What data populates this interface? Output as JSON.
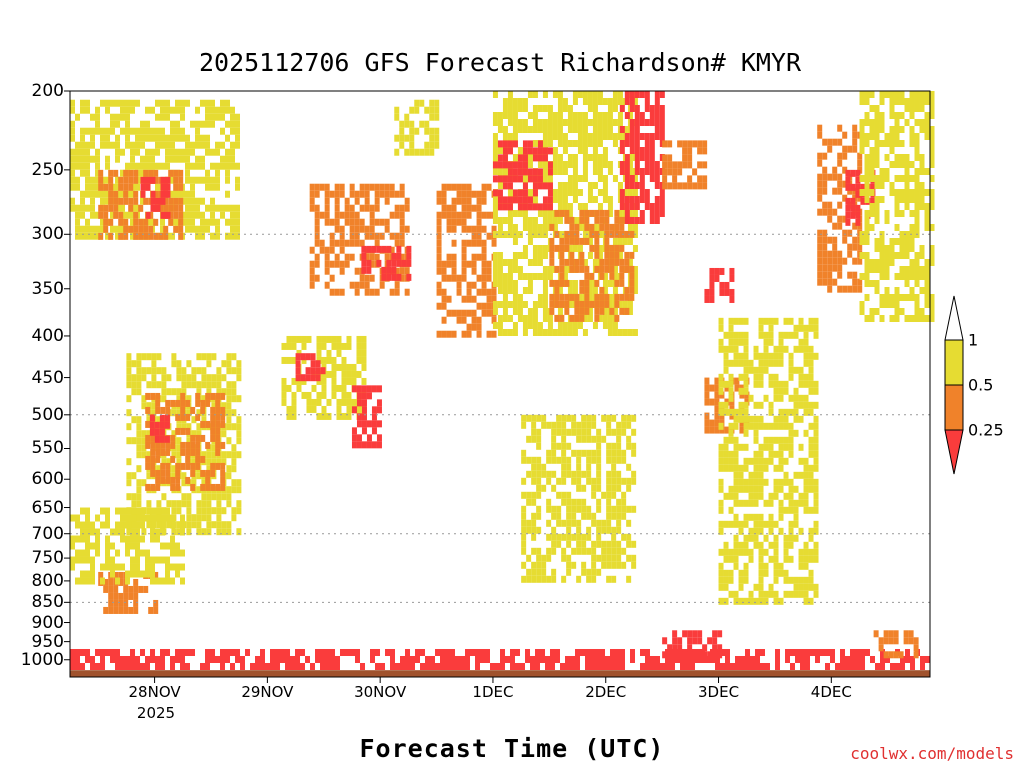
{
  "chart_data": {
    "type": "heatmap",
    "title": "2025112706 GFS Forecast Richardson# KMYR",
    "xlabel": "Forecast Time (UTC)",
    "ylabel": "",
    "credit": "coolwx.com/models",
    "y_axis": {
      "unit": "hPa",
      "scale": "log-pressure",
      "range": [
        1050,
        200
      ],
      "ticks": [
        "200",
        "250",
        "300",
        "350",
        "400",
        "450",
        "500",
        "550",
        "600",
        "650",
        "700",
        "750",
        "800",
        "850",
        "900",
        "950",
        "1000"
      ],
      "gridlines": [
        300,
        500,
        700,
        850
      ],
      "grid_style": "dotted"
    },
    "x_axis": {
      "range": [
        "2025-11-27T06:00Z",
        "2025-12-04T21:00Z"
      ],
      "ticks": [
        {
          "date": "2025-11-28T00:00Z",
          "label": "28NOV"
        },
        {
          "date": "2025-11-29T00:00Z",
          "label": "29NOV"
        },
        {
          "date": "2025-11-30T00:00Z",
          "label": "30NOV"
        },
        {
          "date": "2025-12-01T00:00Z",
          "label": "1DEC"
        },
        {
          "date": "2025-12-02T00:00Z",
          "label": "2DEC"
        },
        {
          "date": "2025-12-03T00:00Z",
          "label": "3DEC"
        },
        {
          "date": "2025-12-04T00:00Z",
          "label": "4DEC"
        }
      ],
      "year_label": "2025"
    },
    "colorbar": {
      "labels": [
        "1",
        "0.5",
        "0.25"
      ],
      "bins": [
        {
          "range": "1 and above",
          "color": "#ffffff"
        },
        {
          "range": "0.5 to 1",
          "color": "#e6dc32"
        },
        {
          "range": "0.25 to 0.5",
          "color": "#f0822a"
        },
        {
          "range": "below 0.25",
          "color": "#fa3c3c"
        }
      ]
    },
    "ground_color": "#a0522d",
    "regions": [
      {
        "bin": "low",
        "t": [
          "2025-11-27T06:00Z",
          "2025-12-04T21:00Z"
        ],
        "p": [
          970,
          1010
        ],
        "note": "near-surface layer"
      },
      {
        "bin": "mid",
        "t": [
          "2025-11-27T12:00Z",
          "2025-11-28T00:00Z"
        ],
        "p": [
          780,
          870
        ]
      },
      {
        "bin": "high",
        "t": [
          "2025-11-27T06:00Z",
          "2025-11-28T06:00Z"
        ],
        "p": [
          650,
          800
        ]
      },
      {
        "bin": "high",
        "t": [
          "2025-11-27T18:00Z",
          "2025-11-28T18:00Z"
        ],
        "p": [
          420,
          700
        ]
      },
      {
        "bin": "mid",
        "t": [
          "2025-11-27T22:00Z",
          "2025-11-28T14:00Z"
        ],
        "p": [
          470,
          620
        ]
      },
      {
        "bin": "low",
        "t": [
          "2025-11-27T23:00Z",
          "2025-11-28T03:00Z"
        ],
        "p": [
          500,
          540
        ]
      },
      {
        "bin": "high",
        "t": [
          "2025-11-27T06:00Z",
          "2025-11-28T18:00Z"
        ],
        "p": [
          205,
          300
        ]
      },
      {
        "bin": "mid",
        "t": [
          "2025-11-27T12:00Z",
          "2025-11-28T06:00Z"
        ],
        "p": [
          250,
          300
        ]
      },
      {
        "bin": "low",
        "t": [
          "2025-11-27T21:00Z",
          "2025-11-28T03:00Z"
        ],
        "p": [
          255,
          285
        ]
      },
      {
        "bin": "high",
        "t": [
          "2025-11-29T03:00Z",
          "2025-11-29T21:00Z"
        ],
        "p": [
          400,
          500
        ]
      },
      {
        "bin": "low",
        "t": [
          "2025-11-29T06:00Z",
          "2025-11-29T12:00Z"
        ],
        "p": [
          420,
          450
        ]
      },
      {
        "bin": "low",
        "t": [
          "2025-11-29T18:00Z",
          "2025-11-30T00:00Z"
        ],
        "p": [
          460,
          540
        ]
      },
      {
        "bin": "mid",
        "t": [
          "2025-11-29T09:00Z",
          "2025-11-30T06:00Z"
        ],
        "p": [
          260,
          350
        ]
      },
      {
        "bin": "low",
        "t": [
          "2025-11-29T20:00Z",
          "2025-11-30T06:00Z"
        ],
        "p": [
          310,
          340
        ]
      },
      {
        "bin": "high",
        "t": [
          "2025-11-30T03:00Z",
          "2025-11-30T12:00Z"
        ],
        "p": [
          205,
          240
        ]
      },
      {
        "bin": "mid",
        "t": [
          "2025-11-30T12:00Z",
          "2025-12-01T00:00Z"
        ],
        "p": [
          260,
          400
        ]
      },
      {
        "bin": "high",
        "t": [
          "2025-12-01T00:00Z",
          "2025-12-02T06:00Z"
        ],
        "p": [
          200,
          400
        ]
      },
      {
        "bin": "low",
        "t": [
          "2025-12-01T00:00Z",
          "2025-12-01T12:00Z"
        ],
        "p": [
          230,
          280
        ]
      },
      {
        "bin": "mid",
        "t": [
          "2025-12-01T12:00Z",
          "2025-12-02T06:00Z"
        ],
        "p": [
          280,
          380
        ]
      },
      {
        "bin": "low",
        "t": [
          "2025-12-02T03:00Z",
          "2025-12-02T12:00Z"
        ],
        "p": [
          200,
          290
        ]
      },
      {
        "bin": "mid",
        "t": [
          "2025-12-02T12:00Z",
          "2025-12-02T21:00Z"
        ],
        "p": [
          230,
          260
        ]
      },
      {
        "bin": "high",
        "t": [
          "2025-12-01T06:00Z",
          "2025-12-02T06:00Z"
        ],
        "p": [
          500,
          800
        ]
      },
      {
        "bin": "low",
        "t": [
          "2025-12-02T12:00Z",
          "2025-12-03T00:00Z"
        ],
        "p": [
          920,
          980
        ]
      },
      {
        "bin": "mid",
        "t": [
          "2025-12-02T21:00Z",
          "2025-12-03T06:00Z"
        ],
        "p": [
          450,
          520
        ]
      },
      {
        "bin": "low",
        "t": [
          "2025-12-02T21:00Z",
          "2025-12-03T03:00Z"
        ],
        "p": [
          330,
          360
        ]
      },
      {
        "bin": "high",
        "t": [
          "2025-12-03T00:00Z",
          "2025-12-03T21:00Z"
        ],
        "p": [
          380,
          850
        ]
      },
      {
        "bin": "mid",
        "t": [
          "2025-12-03T21:00Z",
          "2025-12-04T06:00Z"
        ],
        "p": [
          220,
          350
        ]
      },
      {
        "bin": "low",
        "t": [
          "2025-12-04T03:00Z",
          "2025-12-04T09:00Z"
        ],
        "p": [
          250,
          290
        ]
      },
      {
        "bin": "high",
        "t": [
          "2025-12-04T06:00Z",
          "2025-12-04T21:00Z"
        ],
        "p": [
          200,
          380
        ]
      },
      {
        "bin": "mid",
        "t": [
          "2025-12-04T09:00Z",
          "2025-12-04T18:00Z"
        ],
        "p": [
          920,
          980
        ]
      }
    ]
  }
}
